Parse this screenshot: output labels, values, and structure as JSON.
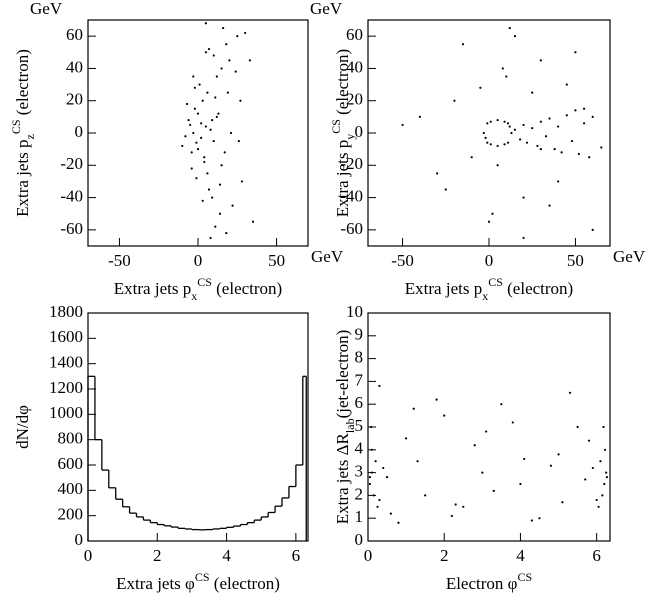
{
  "chart_data": [
    {
      "type": "scatter",
      "color": "#000000",
      "xlabel": [
        {
          "text": "Extra jets p"
        },
        {
          "text": "x",
          "style": "sub"
        },
        {
          "text": "CS",
          "style": "sup"
        },
        {
          "text": " (electron)"
        }
      ],
      "ylabel": [
        {
          "text": "Extra jets p"
        },
        {
          "text": "z",
          "style": "sub"
        },
        {
          "text": "CS",
          "style": "sup"
        },
        {
          "text": " (electron)"
        }
      ],
      "x_unit": "GeV",
      "y_unit": "GeV",
      "xlim": [
        -70,
        70
      ],
      "ylim": [
        -70,
        70
      ],
      "xticks": [
        -50,
        0,
        50
      ],
      "yticks": [
        -60,
        -40,
        -20,
        0,
        20,
        40,
        60
      ],
      "x": [
        -3,
        2,
        5,
        -6,
        0,
        8,
        -2,
        4,
        10,
        -8,
        3,
        -4,
        6,
        1,
        -1,
        12,
        7,
        -5,
        15,
        9,
        20,
        14,
        -10,
        18,
        25,
        5,
        11,
        -3,
        22,
        16,
        30,
        8,
        13,
        -7,
        28,
        4,
        19,
        35,
        2,
        24,
        6,
        -2,
        10,
        15,
        3,
        0,
        -4,
        12,
        27,
        18,
        7,
        9,
        -1,
        21,
        33,
        14,
        5,
        17,
        26,
        11
      ],
      "values": [
        0,
        -3,
        4,
        8,
        -10,
        2,
        15,
        -15,
        -5,
        -2,
        20,
        -22,
        25,
        30,
        -28,
        10,
        -35,
        5,
        40,
        -40,
        45,
        -50,
        -8,
        55,
        60,
        50,
        -58,
        35,
        -45,
        65,
        62,
        -65,
        12,
        18,
        -30,
        -18,
        25,
        -55,
        6,
        38,
        -25,
        28,
        48,
        -20,
        -42,
        12,
        -12,
        35,
        20,
        -62,
        52,
        8,
        -6,
        0,
        45,
        -32,
        68,
        -12,
        -5,
        22
      ]
    },
    {
      "type": "scatter",
      "color": "#000000",
      "xlabel": [
        {
          "text": "Extra jets p"
        },
        {
          "text": "x",
          "style": "sub"
        },
        {
          "text": "CS",
          "style": "sup"
        },
        {
          "text": " (electron)"
        }
      ],
      "ylabel": [
        {
          "text": "Extra jets p"
        },
        {
          "text": "y",
          "style": "sub"
        },
        {
          "text": "CS",
          "style": "sup"
        },
        {
          "text": " (electron)"
        }
      ],
      "x_unit": "GeV",
      "y_unit": "GeV",
      "xlim": [
        -70,
        70
      ],
      "ylim": [
        -70,
        70
      ],
      "xticks": [
        -50,
        0,
        50
      ],
      "yticks": [
        -60,
        -40,
        -20,
        0,
        20,
        40,
        60
      ],
      "x": [
        13,
        11,
        5,
        -1,
        -3,
        -1,
        5,
        11,
        12,
        9,
        1,
        -2,
        1,
        9,
        15,
        18,
        20,
        22,
        25,
        28,
        30,
        33,
        35,
        38,
        40,
        42,
        45,
        48,
        50,
        52,
        55,
        58,
        60,
        65,
        -20,
        -30,
        10,
        20,
        30,
        -40,
        0,
        15,
        40,
        25,
        -10,
        50,
        35,
        5,
        -50,
        60,
        45,
        -15,
        20,
        8,
        30,
        -25,
        55,
        12,
        2,
        -5
      ],
      "values": [
        0,
        6,
        8,
        6,
        0,
        -6,
        -8,
        -6,
        4,
        -7,
        7,
        -3,
        -7,
        7,
        2,
        -4,
        5,
        -6,
        3,
        -8,
        7,
        -2,
        9,
        -10,
        4,
        -12,
        11,
        -5,
        14,
        -13,
        6,
        -15,
        10,
        -9,
        20,
        -25,
        35,
        -40,
        45,
        10,
        -55,
        60,
        -30,
        25,
        -15,
        50,
        -45,
        -20,
        5,
        -60,
        30,
        55,
        -65,
        40,
        -10,
        -35,
        15,
        65,
        -50,
        28
      ]
    },
    {
      "type": "histogram",
      "color": "#000000",
      "xlabel": [
        {
          "text": "Extra jets φ"
        },
        {
          "text": "CS",
          "style": "sup"
        },
        {
          "text": " (electron)"
        }
      ],
      "ylabel": "dN/dφ",
      "xlim": [
        0,
        6.35
      ],
      "ylim": [
        0,
        1800
      ],
      "xticks": [
        0,
        2,
        4,
        6
      ],
      "yticks": [
        0,
        200,
        400,
        600,
        800,
        1000,
        1200,
        1400,
        1600,
        1800
      ],
      "bins": [
        0,
        0.2,
        0.4,
        0.6,
        0.8,
        1,
        1.2,
        1.4,
        1.6,
        1.8,
        2,
        2.2,
        2.4,
        2.6,
        2.8,
        3,
        3.2,
        3.4,
        3.6,
        3.8,
        4,
        4.2,
        4.4,
        4.6,
        4.8,
        5,
        5.2,
        5.4,
        5.6,
        5.8,
        6,
        6.2,
        6.3
      ],
      "values": [
        1300,
        800,
        560,
        420,
        330,
        270,
        220,
        190,
        165,
        145,
        130,
        120,
        110,
        100,
        95,
        90,
        88,
        90,
        95,
        100,
        108,
        118,
        130,
        145,
        165,
        190,
        225,
        275,
        340,
        430,
        600,
        1300
      ]
    },
    {
      "type": "scatter",
      "color": "#000000",
      "xlabel": [
        {
          "text": "Electron φ"
        },
        {
          "text": "CS",
          "style": "sup"
        }
      ],
      "ylabel": [
        {
          "text": "Extra jets ΔR"
        },
        {
          "text": "lab",
          "style": "sub"
        },
        {
          "text": "(jet-electron)"
        }
      ],
      "xlim": [
        0,
        6.35
      ],
      "ylim": [
        0,
        10
      ],
      "xticks": [
        0,
        2,
        4,
        6
      ],
      "yticks": [
        0,
        1,
        2,
        3,
        4,
        5,
        6,
        7,
        8,
        9,
        10
      ],
      "x": [
        0.05,
        0.1,
        0.15,
        0.2,
        0.3,
        0.1,
        0.05,
        0.25,
        0.4,
        0.08,
        6.2,
        6.25,
        6.15,
        6.1,
        6.0,
        6.22,
        6.27,
        6.05,
        5.9,
        6.18,
        0.6,
        1.0,
        1.5,
        2.0,
        2.5,
        3.0,
        3.5,
        4.0,
        4.5,
        5.0,
        5.5,
        0.8,
        1.3,
        1.8,
        2.3,
        2.8,
        3.3,
        3.8,
        4.3,
        4.8,
        5.3,
        5.7,
        0.5,
        1.2,
        2.2,
        3.1,
        4.1,
        5.1,
        5.8,
        0.3
      ],
      "values": [
        2.5,
        3,
        2,
        3.5,
        1.8,
        4,
        2.8,
        1.5,
        3.2,
        5,
        2.5,
        3,
        2,
        3.5,
        1.8,
        4,
        2.8,
        1.5,
        3.2,
        5,
        1.2,
        4.5,
        2,
        5.5,
        1.5,
        3,
        6,
        2.5,
        1,
        3.8,
        5,
        0.8,
        3.5,
        6.2,
        1.6,
        4.2,
        2.2,
        5.2,
        0.9,
        3.3,
        6.5,
        2.7,
        2.8,
        5.8,
        1.1,
        4.8,
        3.6,
        1.7,
        4.4,
        6.8
      ]
    }
  ]
}
